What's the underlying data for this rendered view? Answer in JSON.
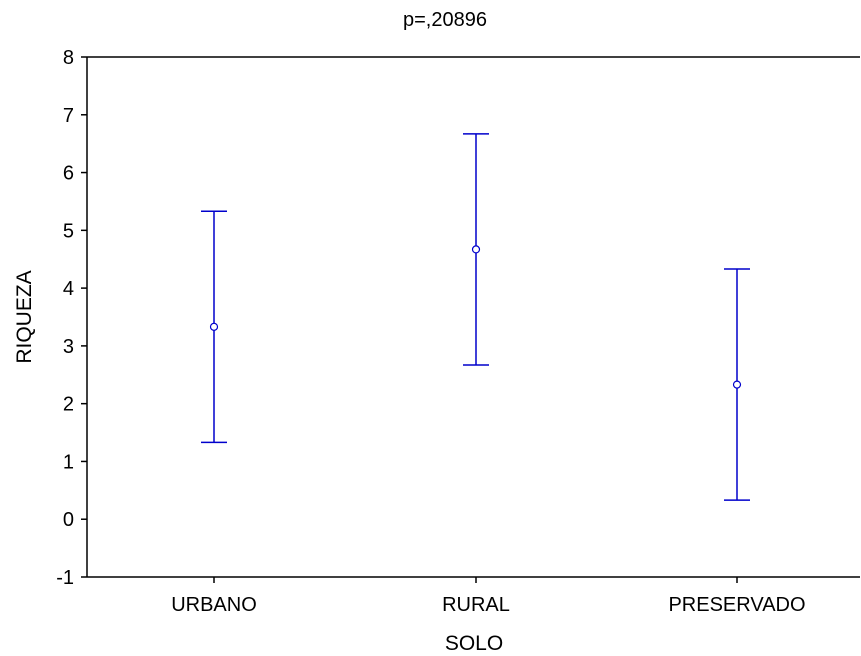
{
  "chart_data": {
    "type": "scatter",
    "title": "p=,20896",
    "xlabel": "SOLO",
    "ylabel": "RIQUEZA",
    "categories": [
      "URBANO",
      "RURAL",
      "PRESERVADO"
    ],
    "series": [
      {
        "points": [
          {
            "category": "URBANO",
            "mean": 3.33,
            "lower": 1.33,
            "upper": 5.33
          },
          {
            "category": "RURAL",
            "mean": 4.67,
            "lower": 2.67,
            "upper": 6.67
          },
          {
            "category": "PRESERVADO",
            "mean": 2.33,
            "lower": 0.33,
            "upper": 4.33
          }
        ]
      }
    ],
    "ylim": [
      -1,
      8
    ],
    "yticks": [
      -1,
      0,
      1,
      2,
      3,
      4,
      5,
      6,
      7,
      8
    ],
    "grid": false,
    "marker": "open-circle",
    "error_bars": true,
    "colors": {
      "series": "#0000cc",
      "axis": "#000000"
    }
  }
}
